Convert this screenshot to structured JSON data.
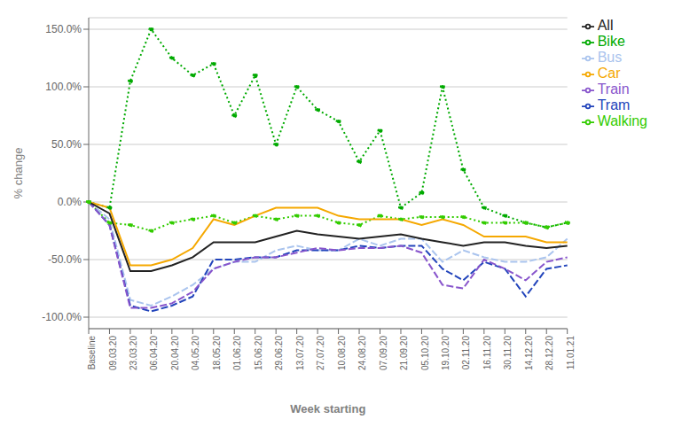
{
  "chart_data": {
    "type": "line",
    "xlabel": "Week starting",
    "ylabel": "% change",
    "categories": [
      "Baseline",
      "09.03.20",
      "23.03.20",
      "06.04.20",
      "20.04.20",
      "04.05.20",
      "18.05.20",
      "01.06.20",
      "15.06.20",
      "29.06.20",
      "13.07.20",
      "27.07.20",
      "10.08.20",
      "24.08.20",
      "07.09.20",
      "21.09.20",
      "05.10.20",
      "19.10.20",
      "02.11.20",
      "16.11.20",
      "30.11.20",
      "14.12.20",
      "28.12.20",
      "11.01.21"
    ],
    "series": [
      {
        "name": "Bike",
        "color": "#00aa00",
        "line_style": "dotted",
        "marker": "dot",
        "values": [
          0,
          -5,
          105,
          150,
          125,
          110,
          120,
          75,
          110,
          50,
          100,
          80,
          70,
          35,
          62,
          -5,
          8,
          100,
          28,
          -5,
          -12,
          -18,
          -22,
          -18
        ]
      },
      {
        "name": "Walking",
        "color": "#33cc00",
        "line_style": "dotted",
        "marker": "dot",
        "values": [
          0,
          -18,
          -20,
          -25,
          -18,
          -15,
          -12,
          -18,
          -12,
          -15,
          -12,
          -12,
          -18,
          -20,
          -12,
          -15,
          -13,
          -13,
          -13,
          -18,
          -18,
          -18,
          -22,
          -18
        ]
      },
      {
        "name": "Bus",
        "color": "#aac4ee",
        "line_style": "dashed",
        "values": [
          0,
          -15,
          -85,
          -90,
          -82,
          -72,
          -58,
          -52,
          -52,
          -42,
          -38,
          -42,
          -42,
          -32,
          -38,
          -32,
          -32,
          -52,
          -42,
          -48,
          -52,
          -52,
          -48,
          -32
        ]
      },
      {
        "name": "Tram",
        "color": "#2244bb",
        "line_style": "dashed",
        "values": [
          0,
          -20,
          -90,
          -95,
          -90,
          -82,
          -50,
          -50,
          -48,
          -48,
          -42,
          -42,
          -42,
          -38,
          -40,
          -38,
          -38,
          -58,
          -68,
          -52,
          -58,
          -82,
          -58,
          -55
        ]
      },
      {
        "name": "Train",
        "color": "#8855cc",
        "line_style": "dashed",
        "values": [
          0,
          -20,
          -92,
          -92,
          -88,
          -78,
          -58,
          -52,
          -48,
          -48,
          -44,
          -40,
          -42,
          -40,
          -40,
          -38,
          -44,
          -72,
          -75,
          -50,
          -58,
          -68,
          -52,
          -48
        ]
      },
      {
        "name": "Car",
        "color": "#f5a800",
        "line_style": "solid",
        "values": [
          0,
          -5,
          -55,
          -55,
          -50,
          -40,
          -15,
          -20,
          -12,
          -5,
          -5,
          -5,
          -12,
          -15,
          -15,
          -15,
          -20,
          -15,
          -20,
          -30,
          -30,
          -30,
          -35,
          -35
        ]
      },
      {
        "name": "All",
        "color": "#222222",
        "line_style": "solid",
        "values": [
          0,
          -10,
          -60,
          -60,
          -55,
          -48,
          -35,
          -35,
          -35,
          -30,
          -25,
          -28,
          -30,
          -32,
          -30,
          -28,
          -32,
          -35,
          -38,
          -35,
          -35,
          -38,
          -40,
          -38
        ]
      }
    ],
    "ylim": [
      -110,
      160
    ],
    "yticks": [
      {
        "value": -100,
        "label": "-100.0%"
      },
      {
        "value": -50,
        "label": "-50.0%"
      },
      {
        "value": 0,
        "label": "0.0%"
      },
      {
        "value": 50,
        "label": "50.0%"
      },
      {
        "value": 100,
        "label": "100.0%"
      },
      {
        "value": 150,
        "label": "150.0%"
      }
    ],
    "grid": true,
    "legend": "right"
  }
}
